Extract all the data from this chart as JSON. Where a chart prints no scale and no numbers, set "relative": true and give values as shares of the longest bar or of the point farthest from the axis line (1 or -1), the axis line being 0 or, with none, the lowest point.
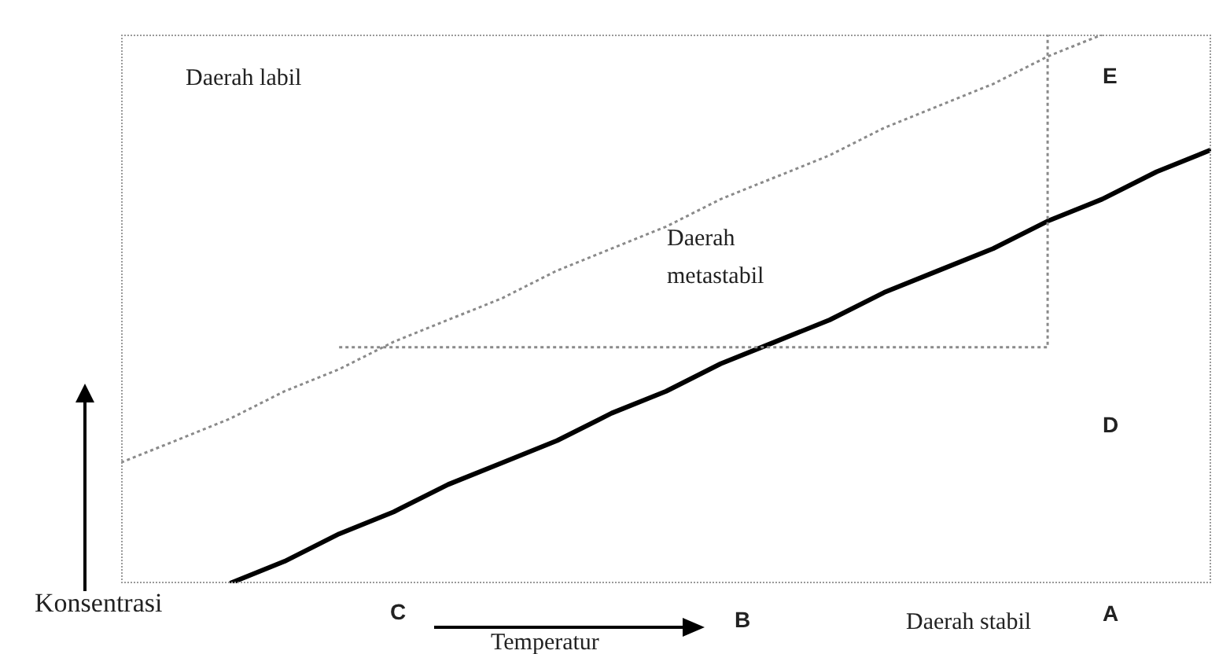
{
  "chart_data": {
    "type": "line",
    "relative": true,
    "categories": [
      null,
      null,
      null,
      null,
      null,
      null,
      null,
      null,
      null,
      null,
      null,
      null,
      null,
      null,
      null,
      null,
      null,
      null,
      null,
      null,
      null
    ],
    "series": [
      {
        "color": "#8a8a8a",
        "line_style": "dotted",
        "values": [
          0.22,
          0.26,
          0.3,
          0.35,
          0.39,
          0.44,
          0.48,
          0.52,
          0.57,
          0.61,
          0.65,
          0.7,
          0.74,
          0.78,
          0.83,
          0.87,
          0.91,
          0.96,
          1.0,
          null,
          null
        ]
      },
      {
        "color": "#000000",
        "line_style": "solid",
        "values": [
          null,
          null,
          0,
          0.04,
          0.09,
          0.13,
          0.18,
          0.22,
          0.26,
          0.31,
          0.35,
          0.4,
          0.44,
          0.48,
          0.53,
          0.57,
          0.61,
          0.66,
          0.7,
          0.75,
          0.79
        ]
      },
      {
        "type": "step",
        "color": "#8a8a8a",
        "line_style": "dotted",
        "values": [
          null,
          null,
          null,
          null,
          0.43,
          0.43,
          0.43,
          0.43,
          0.43,
          0.43,
          0.43,
          0.43,
          0.43,
          0.43,
          0.43,
          0.43,
          0.43,
          1.0,
          null,
          null,
          null
        ]
      }
    ],
    "marker": "none",
    "grid": false,
    "legend": false,
    "xlabel": "Temperatur",
    "ylabel": "Konsentrasi",
    "annotations": [
      "Daerah labil",
      "E",
      "Daerah metastabil",
      "D",
      "C",
      "B",
      "Daerah stabil",
      "A"
    ]
  }
}
